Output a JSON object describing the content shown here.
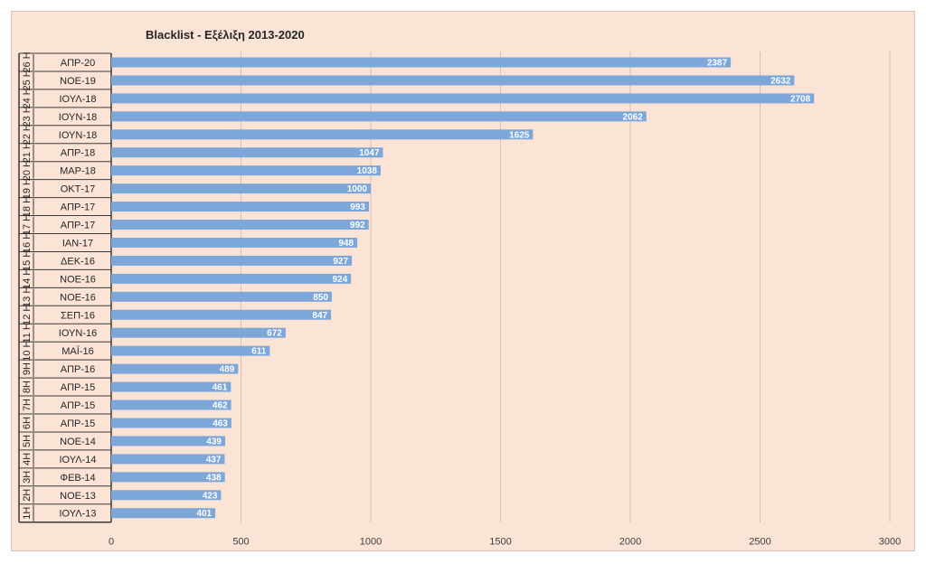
{
  "chart_data": {
    "type": "bar",
    "orientation": "horizontal",
    "title": "Blacklist - Εξέλιξη 2013-2020",
    "xlim": [
      0,
      3000
    ],
    "x_ticks": [
      "0",
      "500",
      "1000",
      "1500",
      "2000",
      "2500",
      "3000"
    ],
    "grid": "vertical",
    "bar_color": "#7da7d9",
    "categories": [
      {
        "group": "26 Η",
        "label": "ΑΠΡ-20",
        "value": 2387
      },
      {
        "group": "25 Η",
        "label": "ΝΟΕ-19",
        "value": 2632
      },
      {
        "group": "24 Η",
        "label": "ΙΟΥΛ-18",
        "value": 2708
      },
      {
        "group": "23 Η",
        "label": "ΙΟΥΝ-18",
        "value": 2062
      },
      {
        "group": "22 Η",
        "label": "ΙΟΥΝ-18",
        "value": 1625
      },
      {
        "group": "21 Η",
        "label": "ΑΠΡ-18",
        "value": 1047
      },
      {
        "group": "20 Η",
        "label": "ΜΑΡ-18",
        "value": 1038
      },
      {
        "group": "19 Η",
        "label": "ΟΚΤ-17",
        "value": 1000
      },
      {
        "group": "18 Η",
        "label": "ΑΠΡ-17",
        "value": 993
      },
      {
        "group": "17 Η",
        "label": "ΑΠΡ-17",
        "value": 992
      },
      {
        "group": "16 Η",
        "label": "ΙΑΝ-17",
        "value": 948
      },
      {
        "group": "15 Η",
        "label": "ΔΕΚ-16",
        "value": 927
      },
      {
        "group": "14 Η",
        "label": "ΝΟΕ-16",
        "value": 924
      },
      {
        "group": "13 Η",
        "label": "ΝΟΕ-16",
        "value": 850
      },
      {
        "group": "12 Η",
        "label": "ΣΕΠ-16",
        "value": 847
      },
      {
        "group": "11 Η",
        "label": "ΙΟΥΝ-16",
        "value": 672
      },
      {
        "group": "10 Η",
        "label": "ΜΑΪ-16",
        "value": 611
      },
      {
        "group": "9Η",
        "label": "ΑΠΡ-16",
        "value": 489
      },
      {
        "group": "8Η",
        "label": "ΑΠΡ-15",
        "value": 461
      },
      {
        "group": "7Η",
        "label": "ΑΠΡ-15",
        "value": 462
      },
      {
        "group": "6Η",
        "label": "ΑΠΡ-15",
        "value": 463
      },
      {
        "group": "5Η",
        "label": "ΝΟΕ-14",
        "value": 439
      },
      {
        "group": "4Η",
        "label": "ΙΟΥΛ-14",
        "value": 437
      },
      {
        "group": "3Η",
        "label": "ΦΕΒ-14",
        "value": 438
      },
      {
        "group": "2Η",
        "label": "ΝΟΕ-13",
        "value": 423
      },
      {
        "group": "1Η",
        "label": "ΙΟΥΛ-13",
        "value": 401
      }
    ]
  }
}
